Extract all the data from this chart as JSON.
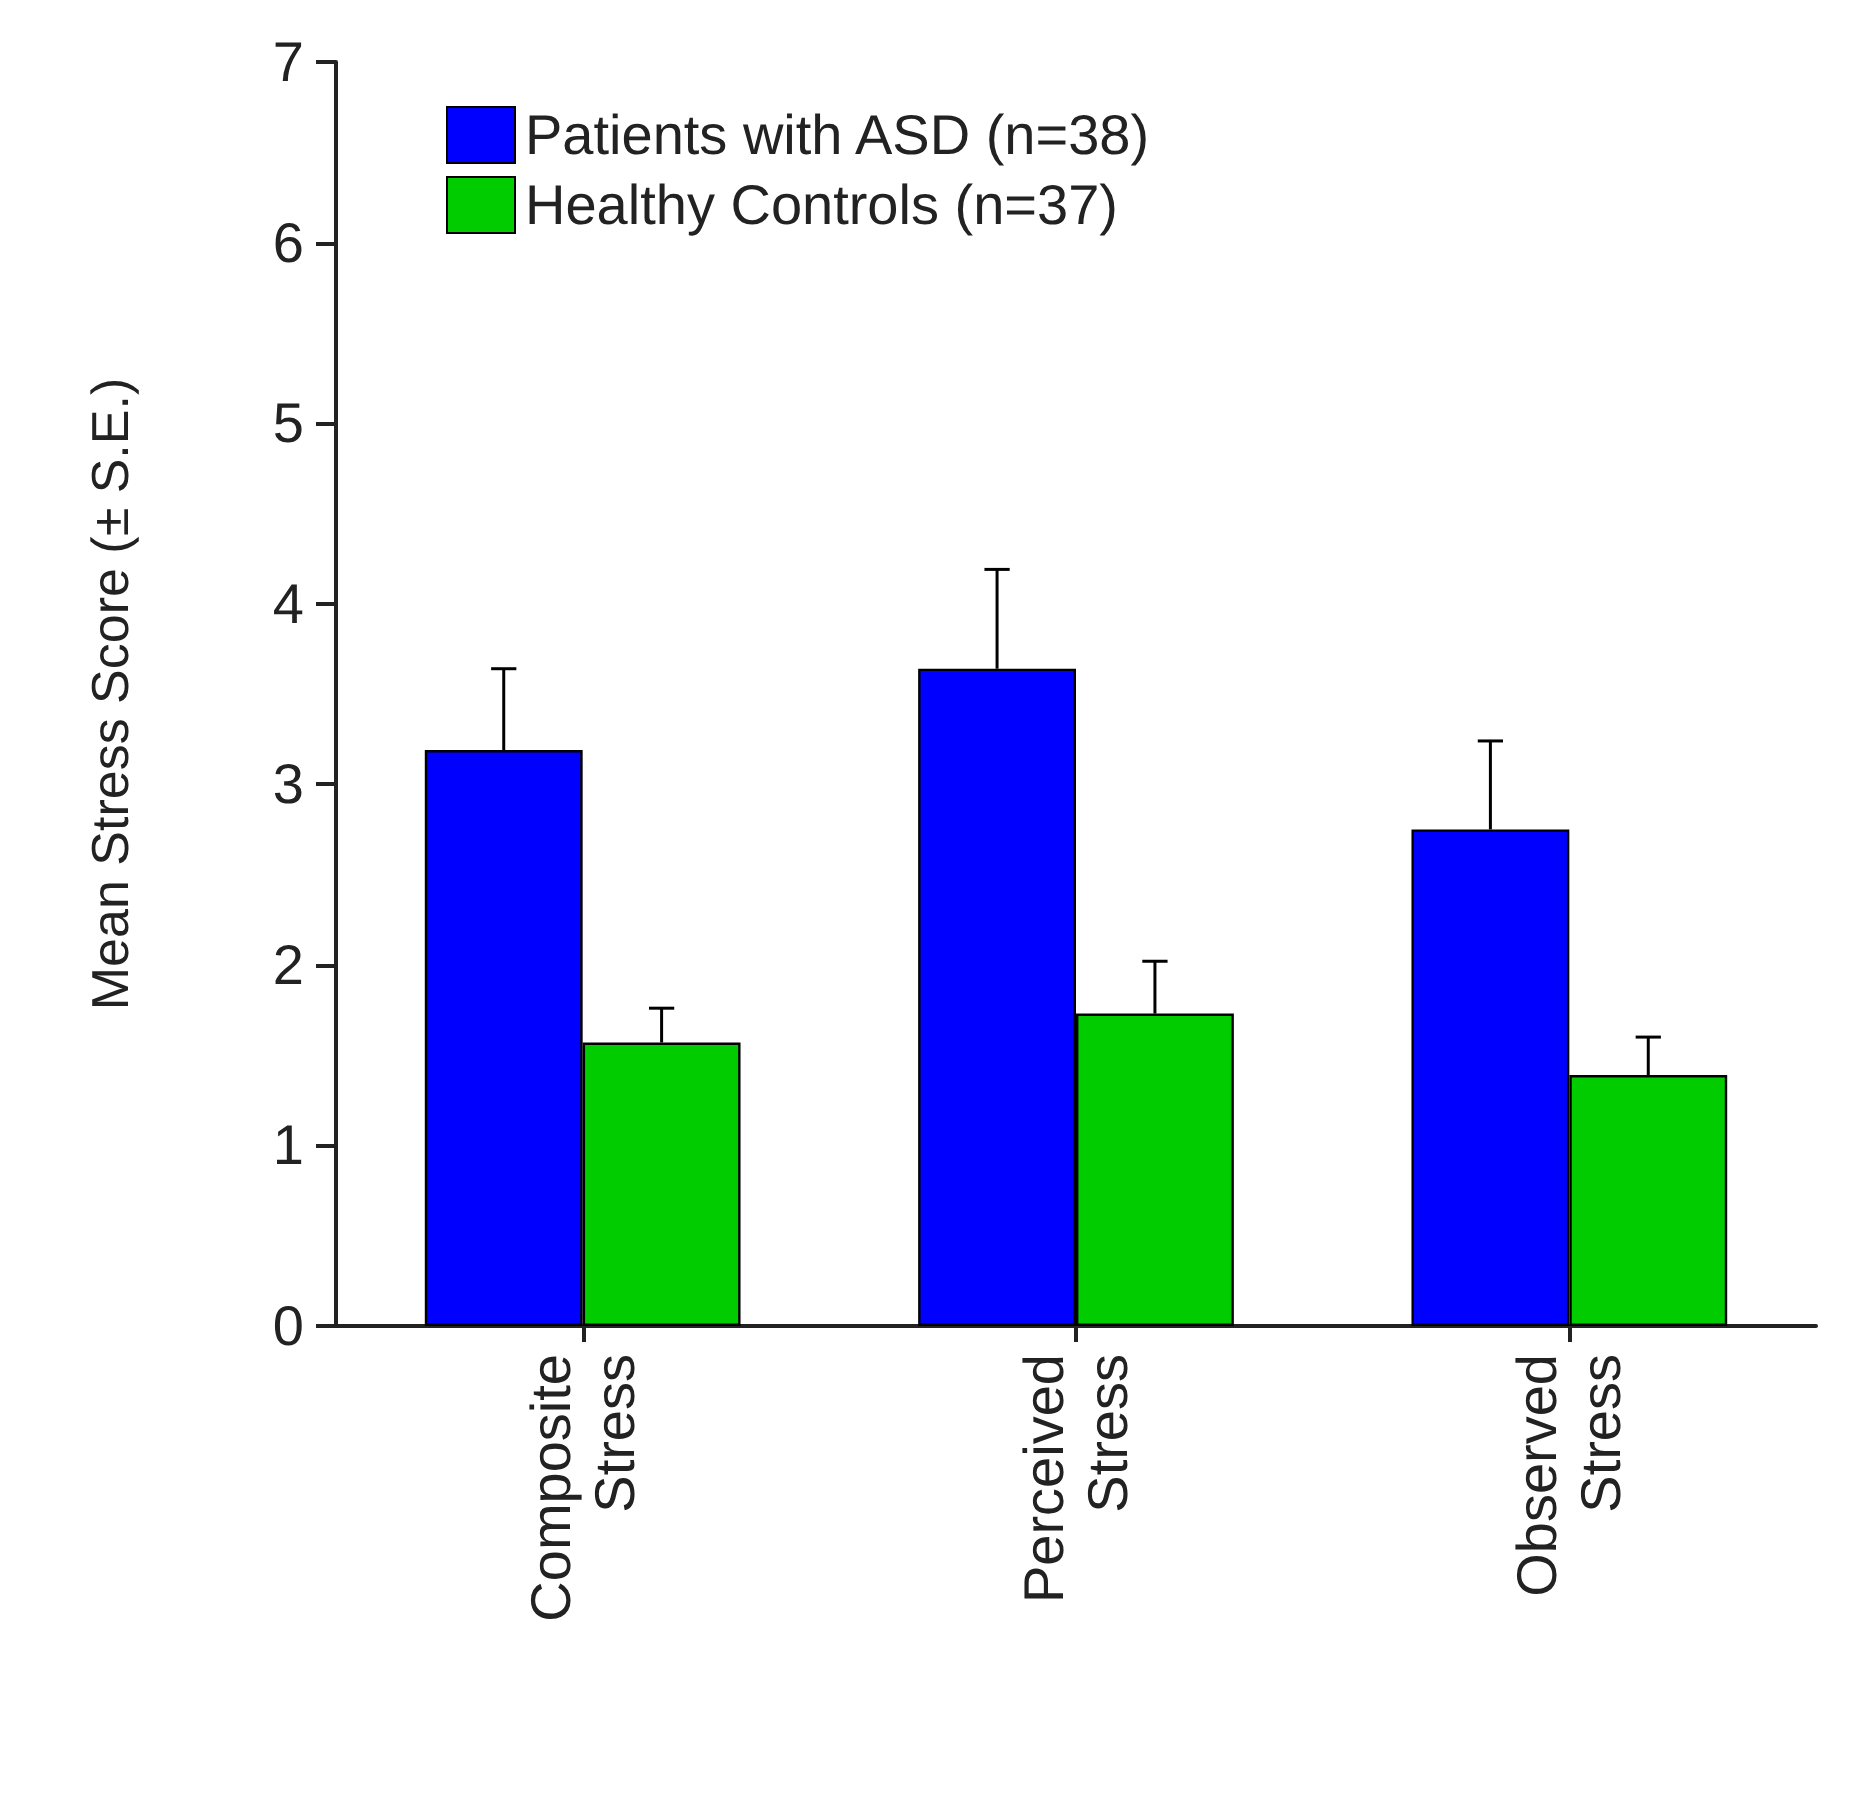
{
  "chart_data": {
    "type": "bar",
    "ylabel": "Mean Stress Score (± S.E.)",
    "categories": [
      "Composite Stress",
      "Perceived Stress",
      "Observed Stress"
    ],
    "series": [
      {
        "name": "Patients with ASD (n=38)",
        "color": "#0000ff",
        "values": [
          3.19,
          3.64,
          2.75
        ],
        "errors": [
          [
            3.19,
            3.64
          ],
          [
            3.64,
            4.19
          ],
          [
            2.75,
            3.24
          ]
        ]
      },
      {
        "name": "Healthy Controls (n=37)",
        "color": "#00cc00",
        "values": [
          1.57,
          1.73,
          1.39
        ],
        "errors": [
          [
            1.57,
            1.76
          ],
          [
            1.73,
            2.02
          ],
          [
            1.39,
            1.6
          ]
        ]
      }
    ],
    "ylim": [
      0,
      7
    ],
    "yticks": [
      0,
      1,
      2,
      3,
      4,
      5,
      6,
      7
    ],
    "grid": false,
    "legend": "top left"
  }
}
